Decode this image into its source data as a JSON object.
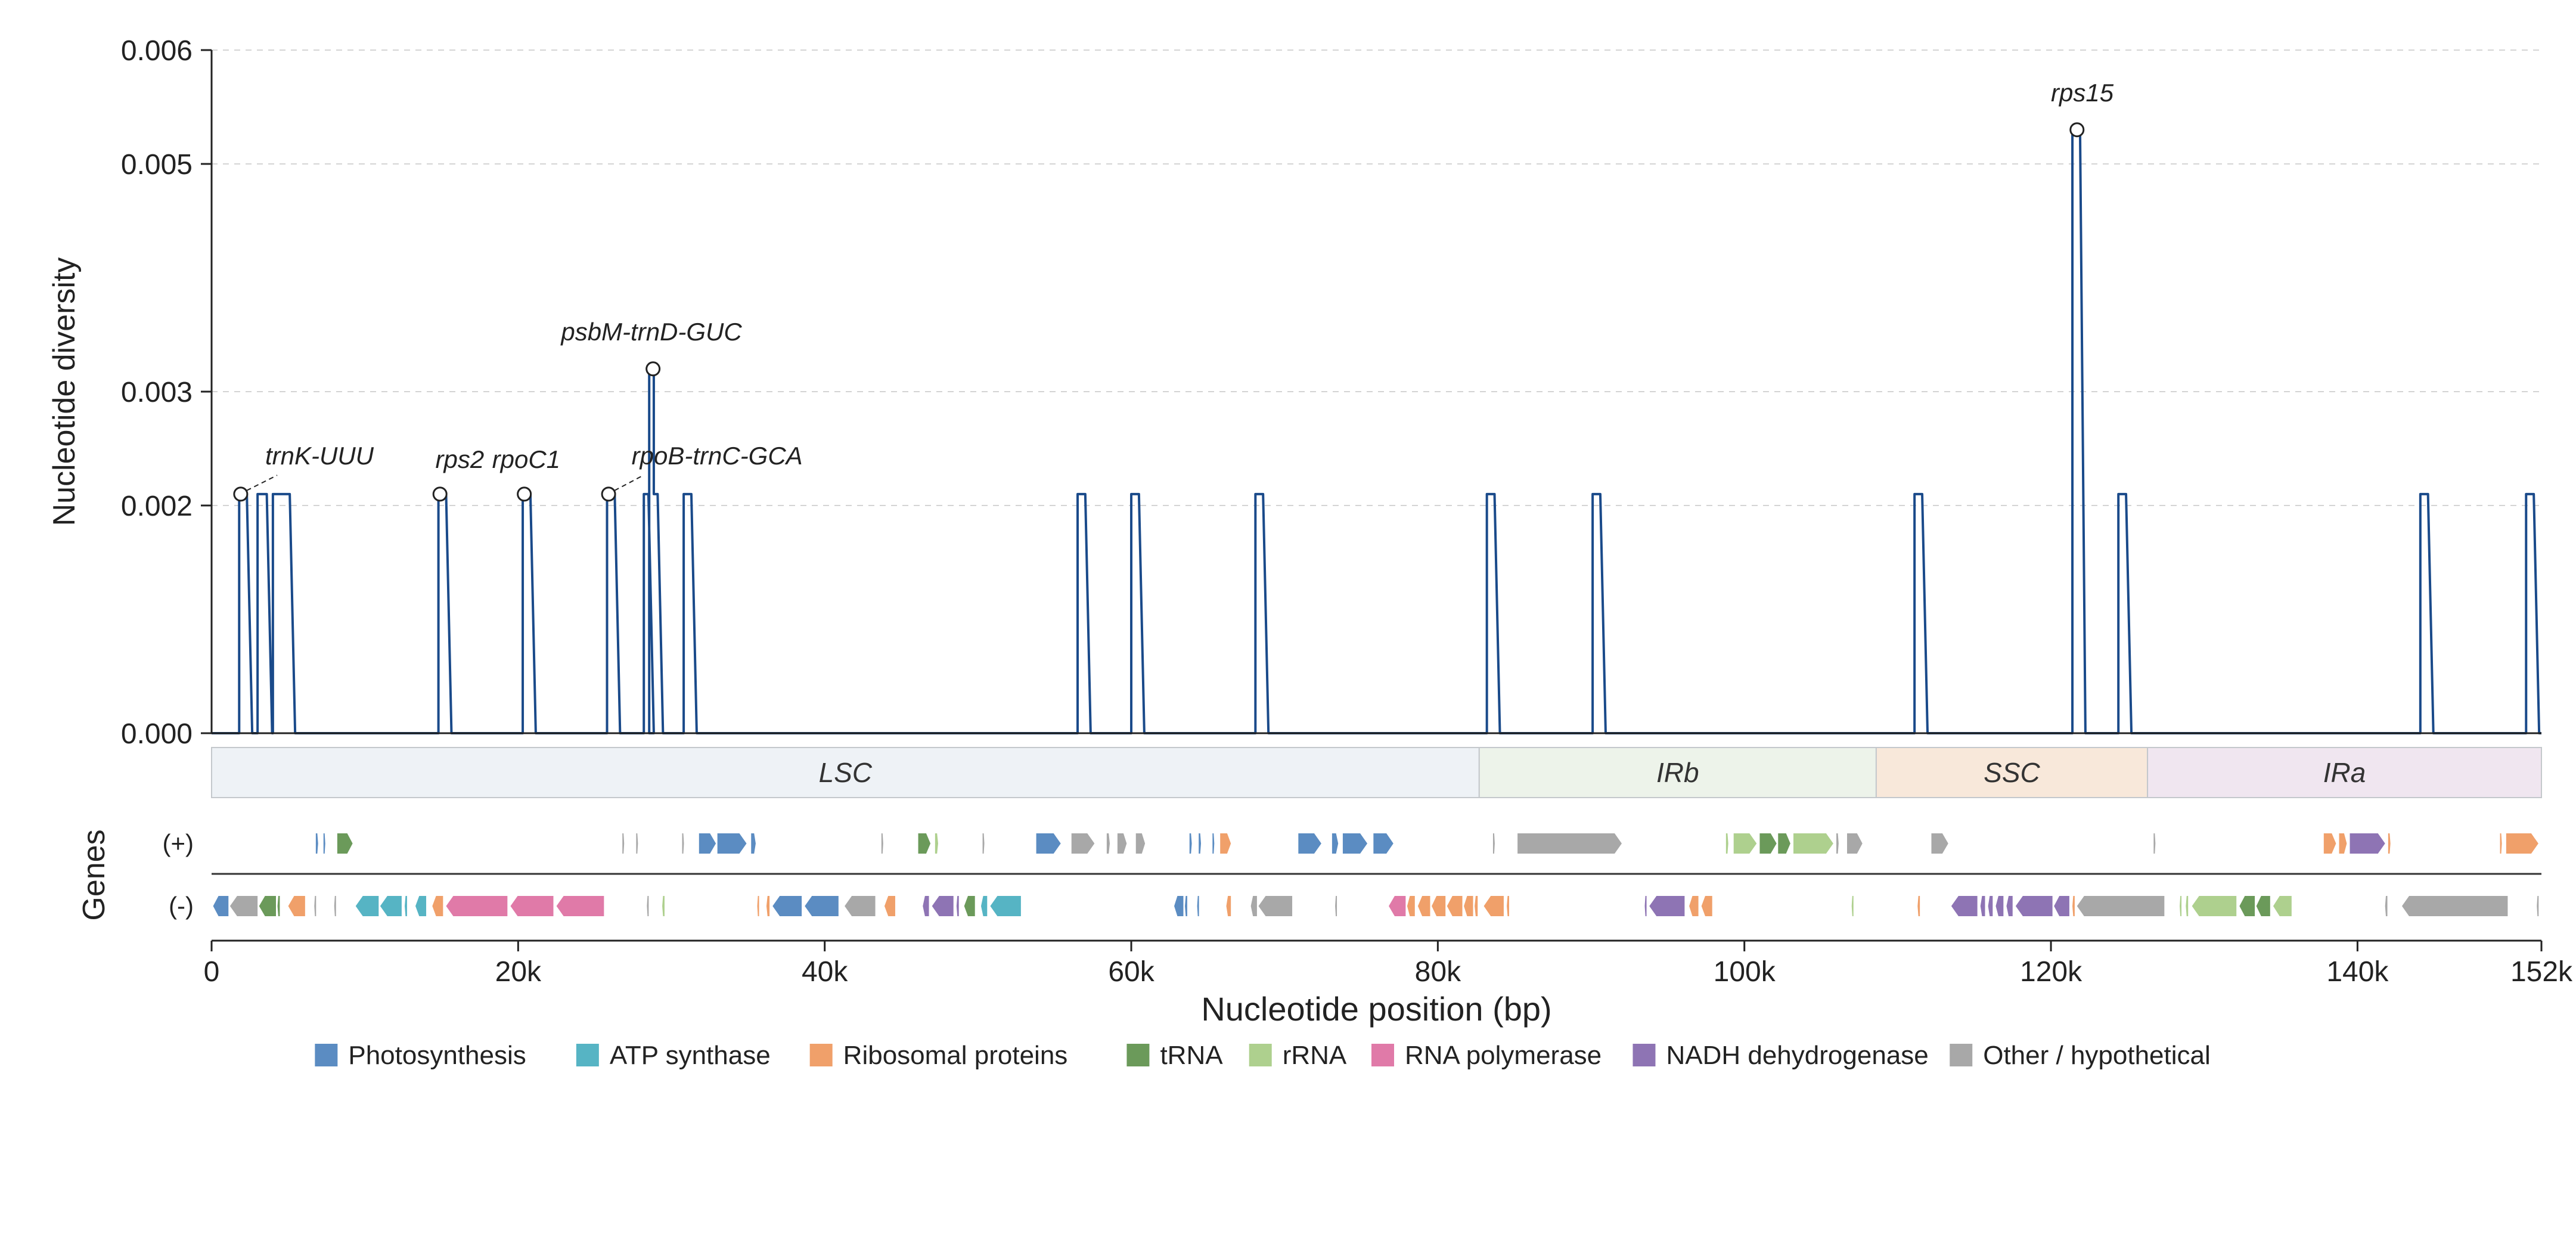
{
  "chart_data": {
    "type": "line",
    "title": "",
    "xlabel": "Nucleotide position (bp)",
    "ylabel": "Nucleotide diversity",
    "genes_axis_label": "Genes",
    "xlim": [
      0,
      152000
    ],
    "ylim": [
      0,
      0.006
    ],
    "x_ticks": [
      {
        "value": 0,
        "label": "0"
      },
      {
        "value": 20000,
        "label": "20k"
      },
      {
        "value": 40000,
        "label": "40k"
      },
      {
        "value": 60000,
        "label": "60k"
      },
      {
        "value": 80000,
        "label": "80k"
      },
      {
        "value": 100000,
        "label": "100k"
      },
      {
        "value": 120000,
        "label": "120k"
      },
      {
        "value": 140000,
        "label": "140k"
      },
      {
        "value": 152000,
        "label": "152k"
      }
    ],
    "y_ticks": [
      {
        "value": 0,
        "label": "0.000"
      },
      {
        "value": 0.002,
        "label": "0.002"
      },
      {
        "value": 0.003,
        "label": "0.003"
      },
      {
        "value": 0.005,
        "label": "0.005"
      },
      {
        "value": 0.006,
        "label": "0.006"
      }
    ],
    "grid": {
      "y": true,
      "x": false
    },
    "line_color": "#1a4a8a",
    "series": [
      {
        "peaks": [
          {
            "start": 1800,
            "end": 2300,
            "y": 0.0021
          },
          {
            "start": 3000,
            "end": 3600,
            "y": 0.0021
          },
          {
            "start": 4000,
            "end": 5100,
            "y": 0.0021
          },
          {
            "start": 14800,
            "end": 15300,
            "y": 0.0021
          },
          {
            "start": 20300,
            "end": 20800,
            "y": 0.0021
          },
          {
            "start": 25800,
            "end": 26300,
            "y": 0.0021
          },
          {
            "start": 28200,
            "end": 28500,
            "y": 0.0021
          },
          {
            "start": 28550,
            "end": 28850,
            "y": 0.0032
          },
          {
            "start": 28850,
            "end": 29100,
            "y": 0.0021
          },
          {
            "start": 30800,
            "end": 31300,
            "y": 0.0021
          },
          {
            "start": 56500,
            "end": 57000,
            "y": 0.0021
          },
          {
            "start": 60000,
            "end": 60500,
            "y": 0.0021
          },
          {
            "start": 68100,
            "end": 68600,
            "y": 0.0021
          },
          {
            "start": 83200,
            "end": 83700,
            "y": 0.0021
          },
          {
            "start": 90100,
            "end": 90600,
            "y": 0.0021
          },
          {
            "start": 111100,
            "end": 111600,
            "y": 0.0021
          },
          {
            "start": 121400,
            "end": 121900,
            "y": 0.0053
          },
          {
            "start": 124400,
            "end": 124900,
            "y": 0.0021
          },
          {
            "start": 144100,
            "end": 144600,
            "y": 0.0021
          },
          {
            "start": 151000,
            "end": 151500,
            "y": 0.0021
          }
        ]
      }
    ],
    "annotations": [
      {
        "label": "trnK-UUU",
        "x": 1900,
        "y": 0.0021,
        "text_x": 3500,
        "text_y": 0.00236,
        "leader": true
      },
      {
        "label": "rps2",
        "x": 14900,
        "y": 0.0021,
        "text_x": 14600,
        "text_y": 0.00233,
        "leader": false
      },
      {
        "label": "rpoC1",
        "x": 20400,
        "y": 0.0021,
        "text_x": 18300,
        "text_y": 0.00233,
        "leader": false
      },
      {
        "label": "psbM-trnD-GUC",
        "x": 28800,
        "y": 0.0032,
        "text_x": 22800,
        "text_y": 0.00345,
        "leader": false
      },
      {
        "label": "rpoB-trnC-GCA",
        "x": 25900,
        "y": 0.0021,
        "text_x": 27400,
        "text_y": 0.00236,
        "leader": true
      },
      {
        "label": "rps15",
        "x": 121700,
        "y": 0.0053,
        "text_x": 120000,
        "text_y": 0.00555,
        "leader": false
      }
    ],
    "regions": [
      {
        "name": "LSC",
        "start": 0,
        "end": 82700,
        "color": "#eef2f6"
      },
      {
        "name": "IRb",
        "start": 82700,
        "end": 108600,
        "color": "#edf3ea"
      },
      {
        "name": "SSC",
        "start": 108600,
        "end": 126300,
        "color": "#f8e8da"
      },
      {
        "name": "IRa",
        "start": 126300,
        "end": 152000,
        "color": "#f0e6f0"
      }
    ],
    "strand_labels": {
      "plus": "(+)",
      "minus": "(-)"
    },
    "legend": [
      {
        "name": "Photosynthesis",
        "color": "#5b8cc2"
      },
      {
        "name": "ATP synthase",
        "color": "#56b4c4"
      },
      {
        "name": "Ribosomal proteins",
        "color": "#f0a06a"
      },
      {
        "name": "tRNA",
        "color": "#6b9a5a"
      },
      {
        "name": "rRNA",
        "color": "#aed08e"
      },
      {
        "name": "RNA polymerase",
        "color": "#e07aa8"
      },
      {
        "name": "NADH dehydrogenase",
        "color": "#8e74b4"
      },
      {
        "name": "Other / hypothetical",
        "color": "#a8a8a8"
      }
    ],
    "genes": {
      "plus": [
        {
          "start": 6800,
          "end": 6950,
          "cat": "Photosynthesis"
        },
        {
          "start": 7300,
          "end": 7400,
          "cat": "Photosynthesis"
        },
        {
          "start": 8200,
          "end": 9200,
          "cat": "tRNA"
        },
        {
          "start": 26800,
          "end": 26900,
          "cat": "Other / hypothetical"
        },
        {
          "start": 27700,
          "end": 27800,
          "cat": "Other / hypothetical"
        },
        {
          "start": 30700,
          "end": 30800,
          "cat": "Other / hypothetical"
        },
        {
          "start": 31800,
          "end": 32900,
          "cat": "Photosynthesis"
        },
        {
          "start": 33000,
          "end": 34900,
          "cat": "Photosynthesis"
        },
        {
          "start": 35200,
          "end": 35500,
          "cat": "Photosynthesis"
        },
        {
          "start": 43700,
          "end": 43800,
          "cat": "Other / hypothetical"
        },
        {
          "start": 46100,
          "end": 46900,
          "cat": "tRNA"
        },
        {
          "start": 47200,
          "end": 47400,
          "cat": "rRNA"
        },
        {
          "start": 50300,
          "end": 50400,
          "cat": "Other / hypothetical"
        },
        {
          "start": 53800,
          "end": 55400,
          "cat": "Photosynthesis"
        },
        {
          "start": 56100,
          "end": 57600,
          "cat": "Other / hypothetical"
        },
        {
          "start": 58400,
          "end": 58600,
          "cat": "Other / hypothetical"
        },
        {
          "start": 59100,
          "end": 59700,
          "cat": "Other / hypothetical"
        },
        {
          "start": 60300,
          "end": 60900,
          "cat": "Other / hypothetical"
        },
        {
          "start": 63800,
          "end": 63950,
          "cat": "Photosynthesis"
        },
        {
          "start": 64400,
          "end": 64550,
          "cat": "Photosynthesis"
        },
        {
          "start": 65300,
          "end": 65400,
          "cat": "Photosynthesis"
        },
        {
          "start": 65800,
          "end": 66500,
          "cat": "Ribosomal proteins"
        },
        {
          "start": 70900,
          "end": 72400,
          "cat": "Photosynthesis"
        },
        {
          "start": 73100,
          "end": 73500,
          "cat": "Photosynthesis"
        },
        {
          "start": 73800,
          "end": 75400,
          "cat": "Photosynthesis"
        },
        {
          "start": 75800,
          "end": 77100,
          "cat": "Photosynthesis"
        },
        {
          "start": 83600,
          "end": 83700,
          "cat": "Other / hypothetical"
        },
        {
          "start": 85200,
          "end": 92000,
          "cat": "Other / hypothetical"
        },
        {
          "start": 98800,
          "end": 98950,
          "cat": "rRNA"
        },
        {
          "start": 99300,
          "end": 100800,
          "cat": "rRNA"
        },
        {
          "start": 101000,
          "end": 102100,
          "cat": "tRNA"
        },
        {
          "start": 102200,
          "end": 103000,
          "cat": "tRNA"
        },
        {
          "start": 103200,
          "end": 105800,
          "cat": "rRNA"
        },
        {
          "start": 106000,
          "end": 106150,
          "cat": "Other / hypothetical"
        },
        {
          "start": 106700,
          "end": 107700,
          "cat": "Other / hypothetical"
        },
        {
          "start": 112200,
          "end": 113300,
          "cat": "Other / hypothetical"
        },
        {
          "start": 126700,
          "end": 126800,
          "cat": "Other / hypothetical"
        },
        {
          "start": 137800,
          "end": 138600,
          "cat": "Ribosomal proteins"
        },
        {
          "start": 138800,
          "end": 139300,
          "cat": "Ribosomal proteins"
        },
        {
          "start": 139500,
          "end": 141800,
          "cat": "NADH dehydrogenase"
        },
        {
          "start": 142000,
          "end": 142150,
          "cat": "Ribosomal proteins"
        },
        {
          "start": 149300,
          "end": 149400,
          "cat": "Ribosomal proteins"
        },
        {
          "start": 149700,
          "end": 151800,
          "cat": "Ribosomal proteins"
        }
      ],
      "minus": [
        {
          "start": 100,
          "end": 1100,
          "cat": "Photosynthesis"
        },
        {
          "start": 1200,
          "end": 3000,
          "cat": "Other / hypothetical"
        },
        {
          "start": 3100,
          "end": 4200,
          "cat": "tRNA"
        },
        {
          "start": 4300,
          "end": 4450,
          "cat": "tRNA"
        },
        {
          "start": 5000,
          "end": 6100,
          "cat": "Ribosomal proteins"
        },
        {
          "start": 6700,
          "end": 6800,
          "cat": "Other / hypothetical"
        },
        {
          "start": 8000,
          "end": 8100,
          "cat": "Other / hypothetical"
        },
        {
          "start": 9400,
          "end": 10900,
          "cat": "ATP synthase"
        },
        {
          "start": 11000,
          "end": 12400,
          "cat": "ATP synthase"
        },
        {
          "start": 12600,
          "end": 12750,
          "cat": "ATP synthase"
        },
        {
          "start": 13300,
          "end": 14000,
          "cat": "ATP synthase"
        },
        {
          "start": 14400,
          "end": 15100,
          "cat": "Ribosomal proteins"
        },
        {
          "start": 15300,
          "end": 19300,
          "cat": "RNA polymerase"
        },
        {
          "start": 19500,
          "end": 22300,
          "cat": "RNA polymerase"
        },
        {
          "start": 22500,
          "end": 25600,
          "cat": "RNA polymerase"
        },
        {
          "start": 28400,
          "end": 28500,
          "cat": "Other / hypothetical"
        },
        {
          "start": 29400,
          "end": 29550,
          "cat": "rRNA"
        },
        {
          "start": 35600,
          "end": 35700,
          "cat": "Ribosomal proteins"
        },
        {
          "start": 36200,
          "end": 36400,
          "cat": "Ribosomal proteins"
        },
        {
          "start": 36600,
          "end": 38500,
          "cat": "Photosynthesis"
        },
        {
          "start": 38700,
          "end": 40900,
          "cat": "Photosynthesis"
        },
        {
          "start": 41300,
          "end": 43300,
          "cat": "Other / hypothetical"
        },
        {
          "start": 43900,
          "end": 44600,
          "cat": "Ribosomal proteins"
        },
        {
          "start": 46400,
          "end": 46800,
          "cat": "NADH dehydrogenase"
        },
        {
          "start": 47000,
          "end": 48400,
          "cat": "NADH dehydrogenase"
        },
        {
          "start": 48600,
          "end": 48750,
          "cat": "NADH dehydrogenase"
        },
        {
          "start": 49100,
          "end": 49800,
          "cat": "tRNA"
        },
        {
          "start": 50200,
          "end": 50600,
          "cat": "ATP synthase"
        },
        {
          "start": 50800,
          "end": 52800,
          "cat": "ATP synthase"
        },
        {
          "start": 62800,
          "end": 63400,
          "cat": "Photosynthesis"
        },
        {
          "start": 63500,
          "end": 63650,
          "cat": "Photosynthesis"
        },
        {
          "start": 64300,
          "end": 64400,
          "cat": "Photosynthesis"
        },
        {
          "start": 66200,
          "end": 66500,
          "cat": "Ribosomal proteins"
        },
        {
          "start": 67800,
          "end": 68200,
          "cat": "Other / hypothetical"
        },
        {
          "start": 68300,
          "end": 70500,
          "cat": "Other / hypothetical"
        },
        {
          "start": 73300,
          "end": 73400,
          "cat": "Other / hypothetical"
        },
        {
          "start": 76800,
          "end": 77900,
          "cat": "RNA polymerase"
        },
        {
          "start": 78000,
          "end": 78500,
          "cat": "Ribosomal proteins"
        },
        {
          "start": 78700,
          "end": 79500,
          "cat": "Ribosomal proteins"
        },
        {
          "start": 79600,
          "end": 80500,
          "cat": "Ribosomal proteins"
        },
        {
          "start": 80600,
          "end": 81600,
          "cat": "Ribosomal proteins"
        },
        {
          "start": 81700,
          "end": 82300,
          "cat": "Ribosomal proteins"
        },
        {
          "start": 82400,
          "end": 82600,
          "cat": "Ribosomal proteins"
        },
        {
          "start": 83000,
          "end": 84300,
          "cat": "Ribosomal proteins"
        },
        {
          "start": 84500,
          "end": 84650,
          "cat": "Ribosomal proteins"
        },
        {
          "start": 93500,
          "end": 93600,
          "cat": "NADH dehydrogenase"
        },
        {
          "start": 93800,
          "end": 96100,
          "cat": "NADH dehydrogenase"
        },
        {
          "start": 96400,
          "end": 97000,
          "cat": "Ribosomal proteins"
        },
        {
          "start": 97200,
          "end": 97900,
          "cat": "Ribosomal proteins"
        },
        {
          "start": 107000,
          "end": 107100,
          "cat": "rRNA"
        },
        {
          "start": 111300,
          "end": 111450,
          "cat": "Ribosomal proteins"
        },
        {
          "start": 113500,
          "end": 115200,
          "cat": "NADH dehydrogenase"
        },
        {
          "start": 115400,
          "end": 115700,
          "cat": "NADH dehydrogenase"
        },
        {
          "start": 115900,
          "end": 116200,
          "cat": "NADH dehydrogenase"
        },
        {
          "start": 116400,
          "end": 116900,
          "cat": "NADH dehydrogenase"
        },
        {
          "start": 117100,
          "end": 117500,
          "cat": "NADH dehydrogenase"
        },
        {
          "start": 117700,
          "end": 120100,
          "cat": "NADH dehydrogenase"
        },
        {
          "start": 120200,
          "end": 121200,
          "cat": "NADH dehydrogenase"
        },
        {
          "start": 121400,
          "end": 121550,
          "cat": "Ribosomal proteins"
        },
        {
          "start": 121700,
          "end": 127400,
          "cat": "Other / hypothetical"
        },
        {
          "start": 128400,
          "end": 128500,
          "cat": "rRNA"
        },
        {
          "start": 128800,
          "end": 128950,
          "cat": "rRNA"
        },
        {
          "start": 129200,
          "end": 132100,
          "cat": "rRNA"
        },
        {
          "start": 132300,
          "end": 133300,
          "cat": "tRNA"
        },
        {
          "start": 133400,
          "end": 134300,
          "cat": "tRNA"
        },
        {
          "start": 134500,
          "end": 135700,
          "cat": "rRNA"
        },
        {
          "start": 141800,
          "end": 141950,
          "cat": "Other / hypothetical"
        },
        {
          "start": 142900,
          "end": 149800,
          "cat": "Other / hypothetical"
        },
        {
          "start": 151700,
          "end": 151800,
          "cat": "Other / hypothetical"
        }
      ]
    }
  }
}
